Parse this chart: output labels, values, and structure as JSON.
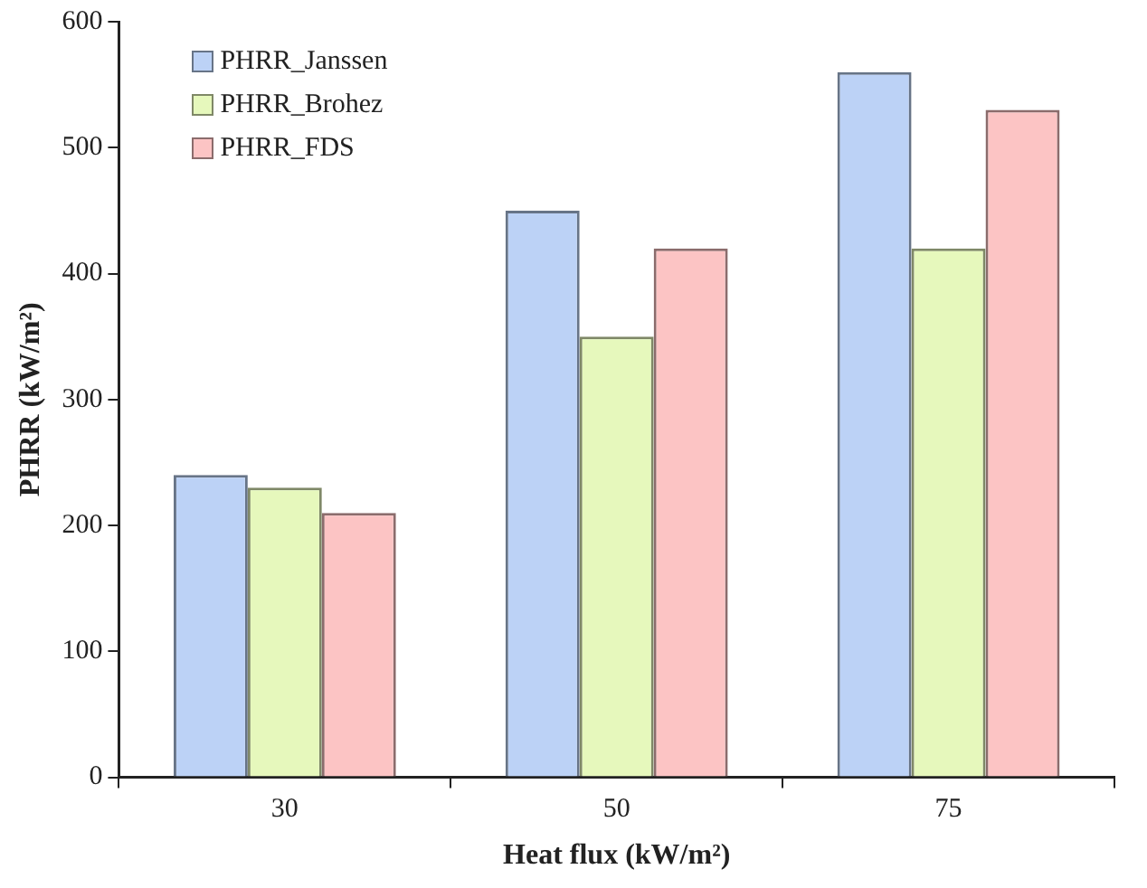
{
  "chart_data": {
    "type": "bar",
    "xlabel": "Heat flux (kW/m²)",
    "ylabel": "PHRR (kW/m²)",
    "categories": [
      "30",
      "50",
      "75"
    ],
    "series": [
      {
        "name": "PHRR_Janssen",
        "color": "#bcd2f6",
        "values": [
          240,
          450,
          560
        ]
      },
      {
        "name": "PHRR_Brohez",
        "color": "#e6f8bc",
        "values": [
          230,
          350,
          420
        ]
      },
      {
        "name": "PHRR_FDS",
        "color": "#fcc4c4",
        "values": [
          210,
          420,
          530
        ]
      }
    ],
    "ylim": [
      0,
      600
    ],
    "yticks": [
      0,
      100,
      200,
      300,
      400,
      500,
      600
    ],
    "grid": false,
    "legend": "top left"
  }
}
